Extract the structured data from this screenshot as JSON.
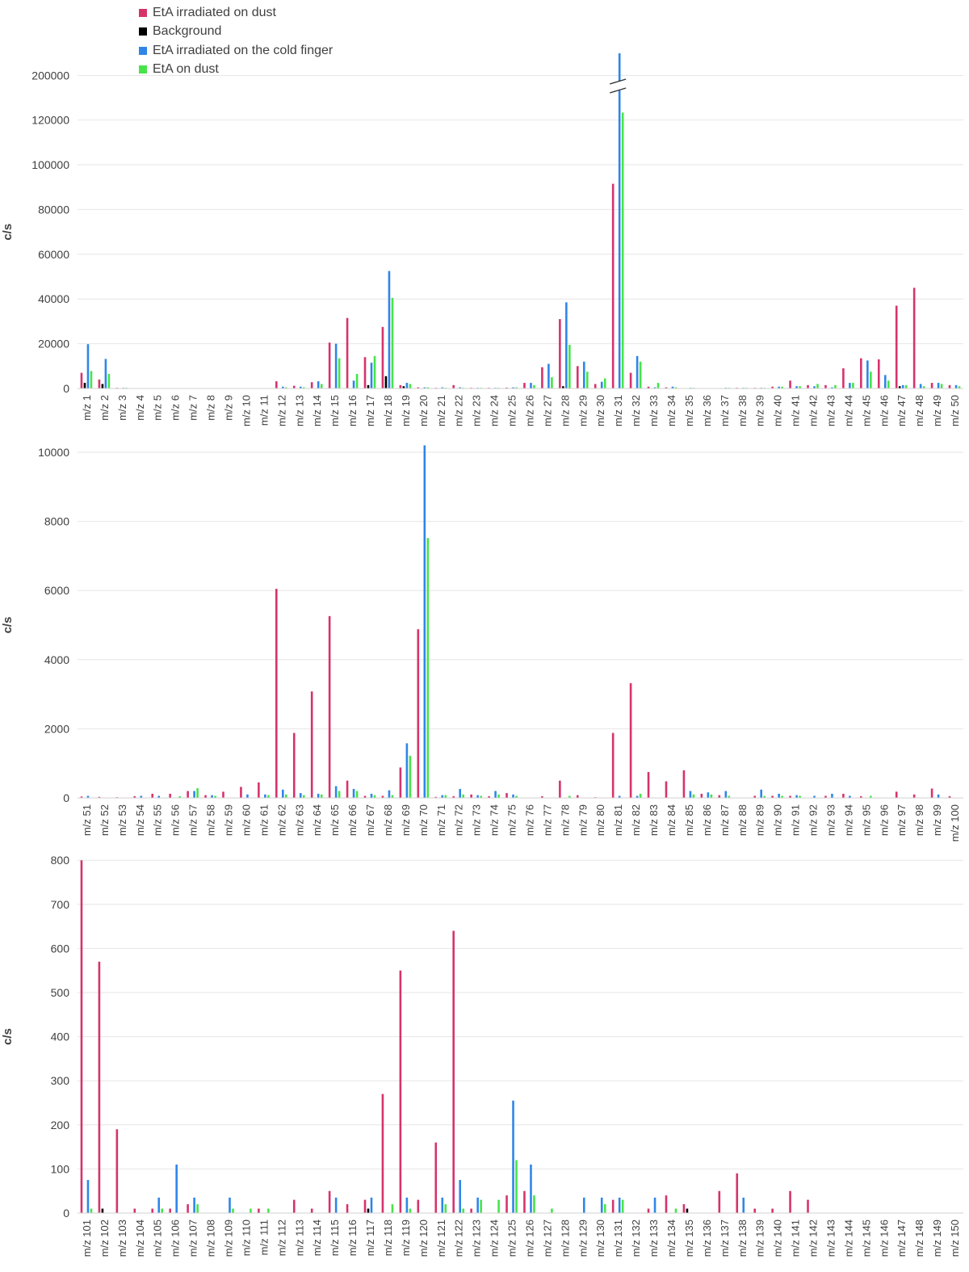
{
  "legend": [
    {
      "name": "EtA irradiated on dust",
      "color": "#d6336c"
    },
    {
      "name": "Background",
      "color": "#000000"
    },
    {
      "name": "EtA irradiated on the cold finger",
      "color": "#2f86e8"
    },
    {
      "name": "EtA on dust",
      "color": "#46e44a"
    }
  ],
  "chart_data": [
    {
      "type": "bar",
      "ylabel": "c/s",
      "axis_break": "between 120000 and 200000 at m/z 31",
      "yticks": [
        "0",
        "20000",
        "40000",
        "60000",
        "80000",
        "100000",
        "120000",
        "200000"
      ],
      "categories": [
        "m/z 1",
        "m/z 2",
        "m/z 3",
        "m/z 4",
        "m/z 5",
        "m/z 6",
        "m/z 7",
        "m/z 8",
        "m/z 9",
        "m/z 10",
        "m/z 11",
        "m/z 12",
        "m/z 13",
        "m/z 14",
        "m/z 15",
        "m/z 16",
        "m/z 17",
        "m/z 18",
        "m/z 19",
        "m/z 20",
        "m/z 21",
        "m/z 22",
        "m/z 23",
        "m/z 24",
        "m/z 25",
        "m/z 26",
        "m/z 27",
        "m/z 28",
        "m/z 29",
        "m/z 30",
        "m/z 31",
        "m/z 32",
        "m/z 33",
        "m/z 34",
        "m/z 35",
        "m/z 36",
        "m/z 37",
        "m/z 38",
        "m/z 39",
        "m/z 40",
        "m/z 41",
        "m/z 42",
        "m/z 43",
        "m/z 44",
        "m/z 45",
        "m/z 46",
        "m/z 47",
        "m/z 48",
        "m/z 49",
        "m/z 50"
      ],
      "series": [
        {
          "name": "EtA irradiated on dust",
          "values": [
            7000,
            4000,
            300,
            0,
            0,
            0,
            0,
            0,
            0,
            0,
            0,
            3200,
            1200,
            2800,
            20500,
            31500,
            14000,
            27500,
            1500,
            500,
            300,
            1500,
            300,
            300,
            400,
            2500,
            9500,
            31000,
            10000,
            2000,
            91500,
            7000,
            800,
            500,
            0,
            0,
            0,
            300,
            300,
            800,
            3500,
            1500,
            1500,
            9000,
            13500,
            13000,
            37000,
            45000,
            2500,
            1500
          ]
        },
        {
          "name": "Background",
          "values": [
            2500,
            2000,
            0,
            0,
            0,
            0,
            0,
            0,
            0,
            0,
            0,
            0,
            0,
            0,
            0,
            0,
            1500,
            5500,
            1000,
            0,
            0,
            0,
            0,
            0,
            0,
            0,
            0,
            1000,
            0,
            0,
            0,
            0,
            0,
            0,
            0,
            0,
            0,
            0,
            0,
            0,
            0,
            0,
            0,
            0,
            0,
            0,
            1000,
            0,
            0,
            0
          ]
        },
        {
          "name": "EtA irradiated on the cold finger",
          "values": [
            19800,
            13200,
            300,
            0,
            0,
            0,
            0,
            0,
            0,
            0,
            0,
            800,
            800,
            3200,
            20000,
            3500,
            11500,
            52500,
            2500,
            500,
            500,
            500,
            300,
            300,
            500,
            2500,
            11000,
            38500,
            12000,
            3000,
            210000,
            14500,
            500,
            800,
            300,
            0,
            300,
            300,
            300,
            800,
            1000,
            1000,
            500,
            2500,
            12500,
            6000,
            1500,
            2000,
            2500,
            1500
          ]
        },
        {
          "name": "EtA on dust",
          "values": [
            7800,
            6500,
            300,
            0,
            0,
            0,
            0,
            0,
            0,
            0,
            0,
            500,
            500,
            2000,
            13500,
            6500,
            14500,
            40500,
            2000,
            500,
            300,
            300,
            300,
            300,
            500,
            1500,
            5000,
            19500,
            7500,
            4500,
            130000,
            12000,
            2500,
            500,
            300,
            0,
            300,
            300,
            300,
            800,
            1000,
            2000,
            1500,
            2500,
            7500,
            3500,
            1500,
            1000,
            2000,
            1000
          ]
        }
      ]
    },
    {
      "type": "bar",
      "ylabel": "c/s",
      "ylim": [
        0,
        10000
      ],
      "yticks": [
        "0",
        "2000",
        "4000",
        "6000",
        "8000",
        "10000"
      ],
      "categories": [
        "m/z 51",
        "m/z 52",
        "m/z 53",
        "m/z 54",
        "m/z 55",
        "m/z 56",
        "m/z 57",
        "m/z 58",
        "m/z 59",
        "m/z 60",
        "m/z 61",
        "m/z 62",
        "m/z 63",
        "m/z 64",
        "m/z 65",
        "m/z 66",
        "m/z 67",
        "m/z 68",
        "m/z 69",
        "m/z 70",
        "m/z 71",
        "m/z 72",
        "m/z 73",
        "m/z 74",
        "m/z 75",
        "m/z 76",
        "m/z 77",
        "m/z 78",
        "m/z 79",
        "m/z 80",
        "m/z 81",
        "m/z 82",
        "m/z 83",
        "m/z 84",
        "m/z 85",
        "m/z 86",
        "m/z 87",
        "m/z 88",
        "m/z 89",
        "m/z 90",
        "m/z 91",
        "m/z 92",
        "m/z 93",
        "m/z 94",
        "m/z 95",
        "m/z 96",
        "m/z 97",
        "m/z 98",
        "m/z 99",
        "m/z 100"
      ],
      "series": [
        {
          "name": "EtA irradiated on dust",
          "values": [
            40,
            30,
            20,
            50,
            120,
            120,
            200,
            80,
            180,
            320,
            450,
            6050,
            1880,
            3080,
            5260,
            500,
            60,
            60,
            880,
            4880,
            30,
            50,
            100,
            50,
            140,
            0,
            50,
            500,
            80,
            20,
            1880,
            3320,
            750,
            480,
            800,
            120,
            80,
            0,
            60,
            60,
            60,
            0,
            60,
            120,
            50,
            0,
            180,
            100,
            270,
            50
          ]
        },
        {
          "name": "Background",
          "values": [
            0,
            0,
            0,
            0,
            0,
            0,
            0,
            0,
            0,
            0,
            0,
            0,
            0,
            0,
            0,
            0,
            0,
            0,
            0,
            0,
            0,
            0,
            0,
            0,
            0,
            0,
            0,
            0,
            0,
            0,
            0,
            0,
            0,
            0,
            0,
            0,
            0,
            0,
            0,
            0,
            0,
            0,
            0,
            0,
            0,
            0,
            0,
            0,
            0,
            0
          ]
        },
        {
          "name": "EtA irradiated on the cold finger",
          "values": [
            60,
            0,
            0,
            60,
            60,
            0,
            200,
            80,
            0,
            100,
            100,
            240,
            140,
            120,
            340,
            260,
            120,
            220,
            1580,
            10200,
            80,
            260,
            80,
            200,
            100,
            0,
            0,
            0,
            0,
            0,
            60,
            60,
            0,
            0,
            200,
            160,
            200,
            0,
            240,
            120,
            80,
            60,
            120,
            60,
            0,
            0,
            0,
            0,
            100,
            0
          ]
        },
        {
          "name": "EtA on dust",
          "values": [
            0,
            0,
            0,
            0,
            0,
            50,
            280,
            60,
            0,
            0,
            80,
            100,
            80,
            100,
            200,
            200,
            80,
            80,
            1220,
            7520,
            80,
            100,
            60,
            100,
            60,
            0,
            0,
            60,
            0,
            0,
            0,
            120,
            0,
            0,
            100,
            100,
            60,
            0,
            60,
            60,
            60,
            0,
            0,
            0,
            60,
            0,
            0,
            0,
            0,
            0
          ]
        }
      ]
    },
    {
      "type": "bar",
      "ylabel": "c/s",
      "ylim": [
        0,
        800
      ],
      "yticks": [
        "0",
        "100",
        "200",
        "300",
        "400",
        "500",
        "600",
        "700",
        "800"
      ],
      "categories": [
        "m/z 101",
        "m/z 102",
        "m/z 103",
        "m/z 104",
        "m/z 105",
        "m/z 106",
        "m/z 107",
        "m/z 108",
        "m/z 109",
        "m/z 110",
        "m/z 111",
        "m/z 112",
        "m/z 113",
        "m/z 114",
        "m/z 115",
        "m/z 116",
        "m/z 117",
        "m/z 118",
        "m/z 119",
        "m/z 120",
        "m/z 121",
        "m/z 122",
        "m/z 123",
        "m/z 124",
        "m/z 125",
        "m/z 126",
        "m/z 127",
        "m/z 128",
        "m/z 129",
        "m/z 130",
        "m/z 131",
        "m/z 132",
        "m/z 133",
        "m/z 134",
        "m/z 135",
        "m/z 136",
        "m/z 137",
        "m/z 138",
        "m/z 139",
        "m/z 140",
        "m/z 141",
        "m/z 142",
        "m/z 143",
        "m/z 144",
        "m/z 145",
        "m/z 146",
        "m/z 147",
        "m/z 148",
        "m/z 149",
        "m/z 150"
      ],
      "series": [
        {
          "name": "EtA irradiated on dust",
          "values": [
            800,
            570,
            190,
            10,
            10,
            10,
            20,
            0,
            0,
            0,
            10,
            0,
            30,
            10,
            50,
            20,
            30,
            270,
            550,
            30,
            160,
            640,
            10,
            0,
            40,
            50,
            0,
            0,
            0,
            0,
            30,
            0,
            10,
            40,
            20,
            0,
            50,
            90,
            10,
            10,
            50,
            30,
            0,
            0,
            0,
            0,
            0,
            0,
            0,
            0
          ]
        },
        {
          "name": "Background",
          "values": [
            0,
            10,
            0,
            0,
            0,
            0,
            0,
            0,
            0,
            0,
            0,
            0,
            0,
            0,
            0,
            0,
            10,
            0,
            0,
            0,
            0,
            0,
            0,
            0,
            0,
            0,
            0,
            0,
            0,
            0,
            0,
            0,
            0,
            0,
            10,
            0,
            0,
            0,
            0,
            0,
            0,
            0,
            0,
            0,
            0,
            0,
            0,
            0,
            0,
            0
          ]
        },
        {
          "name": "EtA irradiated on the cold finger",
          "values": [
            75,
            0,
            0,
            0,
            35,
            110,
            35,
            0,
            35,
            0,
            0,
            0,
            0,
            0,
            35,
            0,
            35,
            0,
            35,
            0,
            35,
            75,
            35,
            0,
            255,
            110,
            0,
            0,
            35,
            35,
            35,
            0,
            35,
            0,
            0,
            0,
            0,
            35,
            0,
            0,
            0,
            0,
            0,
            0,
            0,
            0,
            0,
            0,
            0,
            0
          ]
        },
        {
          "name": "EtA on dust",
          "values": [
            10,
            0,
            0,
            0,
            10,
            0,
            20,
            0,
            10,
            10,
            10,
            0,
            0,
            0,
            0,
            0,
            0,
            20,
            10,
            0,
            20,
            10,
            30,
            30,
            120,
            40,
            10,
            0,
            0,
            20,
            30,
            0,
            0,
            10,
            0,
            0,
            0,
            0,
            0,
            0,
            0,
            0,
            0,
            0,
            0,
            0,
            0,
            0,
            0,
            0
          ]
        }
      ]
    }
  ]
}
